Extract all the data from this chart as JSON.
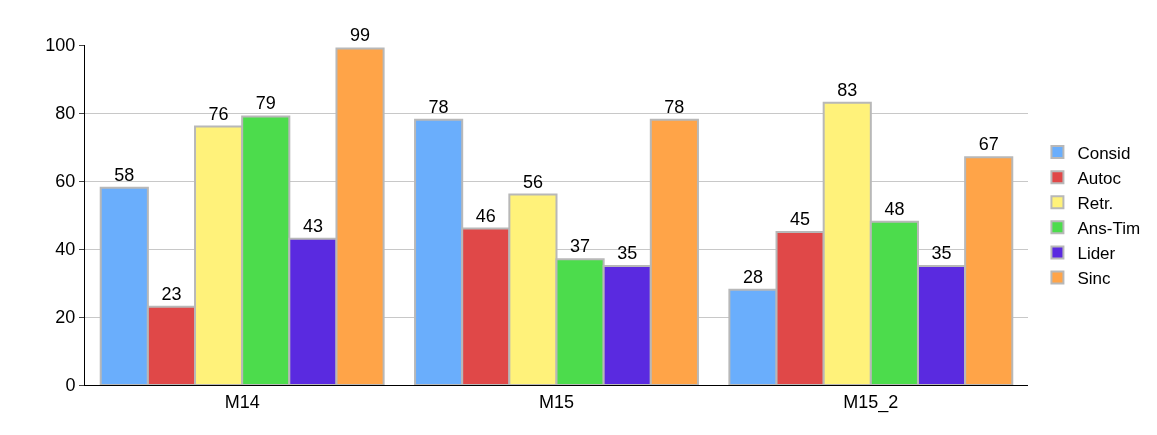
{
  "chart_data": {
    "type": "bar",
    "categories": [
      "M14",
      "M15",
      "M15_2"
    ],
    "series": [
      {
        "name": "Consid",
        "color": "#6aaefc",
        "values": [
          58,
          78,
          28
        ]
      },
      {
        "name": "Autoc",
        "color": "#e04848",
        "values": [
          23,
          46,
          45
        ]
      },
      {
        "name": "Retr.",
        "color": "#fff27a",
        "values": [
          76,
          56,
          83
        ]
      },
      {
        "name": "Ans-Tim",
        "color": "#4cdc4c",
        "values": [
          79,
          37,
          48
        ]
      },
      {
        "name": "Lider",
        "color": "#5a2ae0",
        "values": [
          43,
          35,
          35
        ]
      },
      {
        "name": "Sinc",
        "color": "#ffa448",
        "values": [
          99,
          78,
          67
        ]
      }
    ],
    "ylim": [
      0,
      100
    ],
    "yticks": [
      0,
      20,
      40,
      60,
      80,
      100
    ],
    "grid": "y",
    "legend": "right",
    "data_labels": true
  }
}
